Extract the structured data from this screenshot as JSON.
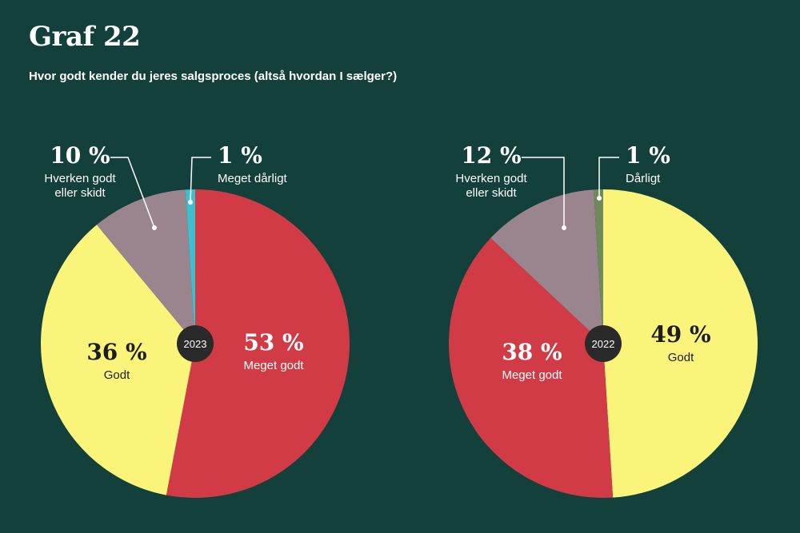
{
  "header": {
    "title": "Graf 22",
    "subtitle": "Hvor godt kender du jeres salgsproces (altså hvordan I sælger?)"
  },
  "chart_data": [
    {
      "type": "pie",
      "center_label": "2023",
      "slices": [
        {
          "label": "Meget godt",
          "value": 53,
          "value_label": "53 %",
          "color": "#d13b46",
          "label_color": "#ffffff"
        },
        {
          "label": "Godt",
          "value": 36,
          "value_label": "36 %",
          "color": "#fbf47a",
          "label_color": "#1d1d1d"
        },
        {
          "label": "Hverken godt eller skidt",
          "value": 10,
          "value_label": "10 %",
          "color": "#9a858e",
          "label_color": "#ffffff"
        },
        {
          "label": "Meget dårligt",
          "value": 1,
          "value_label": "1 %",
          "color": "#3dbfcf",
          "label_color": "#ffffff"
        }
      ]
    },
    {
      "type": "pie",
      "center_label": "2022",
      "slices": [
        {
          "label": "Godt",
          "value": 49,
          "value_label": "49 %",
          "color": "#fbf47a",
          "label_color": "#1d1d1d"
        },
        {
          "label": "Meget godt",
          "value": 38,
          "value_label": "38 %",
          "color": "#d13b46",
          "label_color": "#ffffff"
        },
        {
          "label": "Hverken godt eller skidt",
          "value": 12,
          "value_label": "12 %",
          "color": "#9a858e",
          "label_color": "#ffffff"
        },
        {
          "label": "Dårligt",
          "value": 1,
          "value_label": "1 %",
          "color": "#6e8a5a",
          "label_color": "#ffffff"
        }
      ]
    }
  ]
}
